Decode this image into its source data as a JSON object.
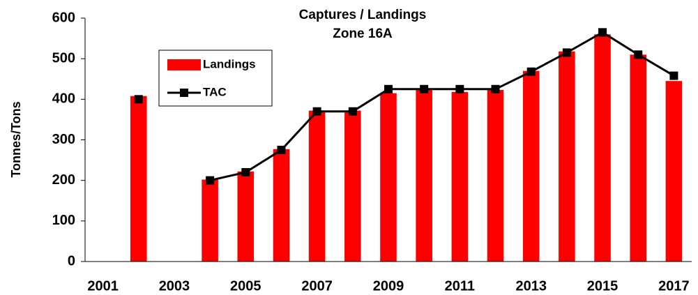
{
  "chart_data": {
    "type": "bar+line",
    "title": "Captures /  Landings",
    "subtitle": "Zone 16A",
    "y_label": "Tonnes/Tons",
    "categories": [
      "2001",
      null,
      "2003",
      null,
      "2005",
      null,
      "2007",
      null,
      "2009",
      null,
      "2011",
      null,
      "2013",
      null,
      "2015",
      null,
      "2017"
    ],
    "series": [
      {
        "name": "Landings",
        "type": "bar",
        "color": "#ff0000",
        "values": [
          null,
          408,
          null,
          202,
          222,
          277,
          372,
          372,
          415,
          425,
          418,
          423,
          470,
          518,
          560,
          510,
          445
        ]
      },
      {
        "name": "TAC",
        "type": "line",
        "color": "#000000",
        "values": [
          null,
          400,
          null,
          200,
          220,
          275,
          370,
          370,
          425,
          425,
          425,
          425,
          468,
          515,
          565,
          510,
          458
        ]
      }
    ],
    "ylim": [
      0,
      600
    ],
    "yticks": [
      0,
      100,
      200,
      300,
      400,
      500,
      600
    ],
    "grid": false
  }
}
